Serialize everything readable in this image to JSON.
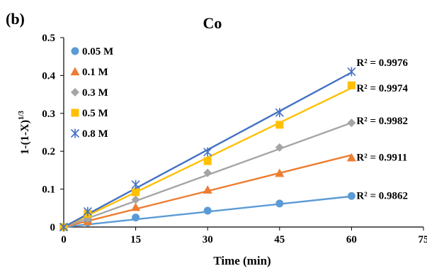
{
  "panel_label": "(b)",
  "chart_data": {
    "type": "scatter",
    "title": "Co",
    "xlabel": "Time (min)",
    "ylabel": "1-(1-X)",
    "ylabel_superscript": "1/3",
    "xlim": [
      0,
      75
    ],
    "ylim": [
      0,
      0.5
    ],
    "xticks": [
      "0",
      "15",
      "30",
      "45",
      "60",
      "75"
    ],
    "yticks": [
      "0",
      "0.1",
      "0.2",
      "0.3",
      "0.4",
      "0.5"
    ],
    "grid": false,
    "legend_position": "top-left",
    "x": [
      0,
      5,
      15,
      30,
      45,
      60
    ],
    "series": [
      {
        "name": "0.05 M",
        "marker": "circle",
        "color": "#5B9BD5",
        "values": [
          0,
          0.012,
          0.025,
          0.043,
          0.062,
          0.082
        ],
        "fit_end": 0.081,
        "r2_label": "R² = 0.9862"
      },
      {
        "name": "0.1 M",
        "marker": "triangle",
        "color": "#ED7D31",
        "values": [
          0,
          0.015,
          0.052,
          0.098,
          0.142,
          0.183
        ],
        "fit_end": 0.19,
        "r2_label": "R² = 0.9911"
      },
      {
        "name": "0.3 M",
        "marker": "diamond",
        "color": "#A5A5A5",
        "values": [
          0,
          0.022,
          0.072,
          0.143,
          0.21,
          0.275
        ],
        "fit_end": 0.275,
        "r2_label": "R² = 0.9982"
      },
      {
        "name": "0.5 M",
        "marker": "square",
        "color": "#FFC000",
        "values": [
          0,
          0.035,
          0.092,
          0.174,
          0.27,
          0.374
        ],
        "fit_end": 0.367,
        "r2_label": "R² = 0.9974"
      },
      {
        "name": "0.8 M",
        "marker": "asterisk",
        "color": "#4472C4",
        "values": [
          0,
          0.041,
          0.112,
          0.198,
          0.302,
          0.41
        ],
        "fit_end": 0.408,
        "r2_label": "R² = 0.9976"
      }
    ]
  }
}
